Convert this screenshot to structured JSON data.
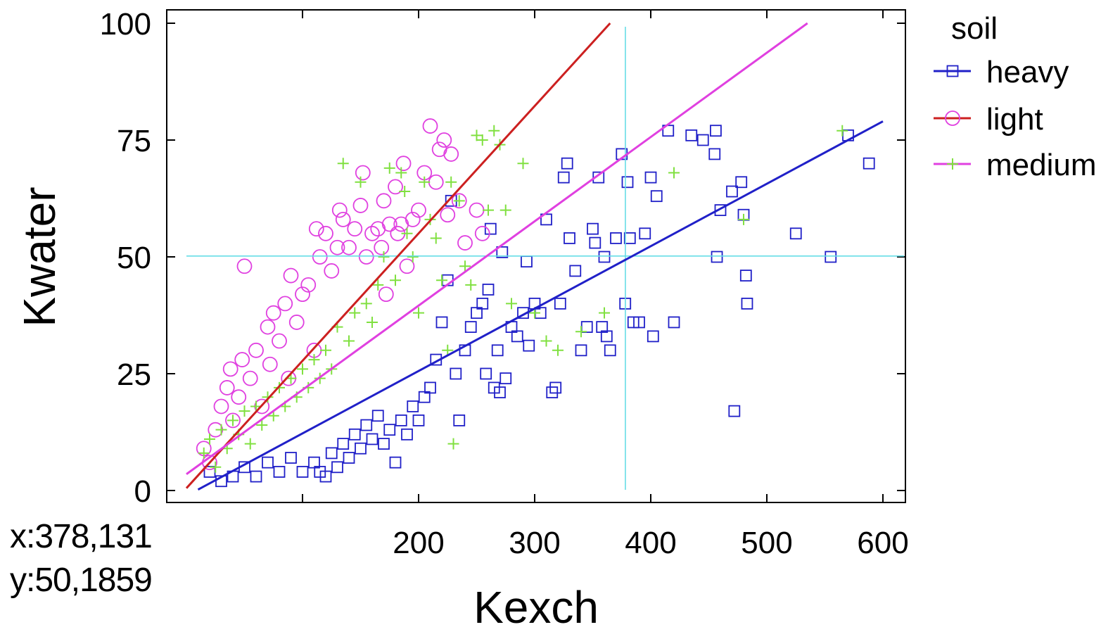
{
  "readout": {
    "x": "x:378,131",
    "y": "y:50,1859"
  },
  "chart_data": {
    "type": "scatter",
    "xlabel": "Kexch",
    "ylabel": "Kwater",
    "xlim": [
      0,
      600
    ],
    "ylim": [
      0,
      100
    ],
    "x_ticks": [
      200,
      300,
      400,
      500,
      600
    ],
    "x_minor_ticks": [
      100
    ],
    "y_ticks": [
      0,
      25,
      50,
      75,
      100
    ],
    "grid": false,
    "crosshair": {
      "x": 378.131,
      "y": 50.1859,
      "color": "#66dde6"
    },
    "legend": {
      "title": "soil",
      "position": "right"
    },
    "series": [
      {
        "name": "heavy",
        "marker": "square",
        "color": "#2020c8",
        "fit": {
          "x": [
            10,
            600
          ],
          "y": [
            0.2,
            79
          ]
        },
        "points": [
          [
            20,
            4
          ],
          [
            30,
            2
          ],
          [
            40,
            3
          ],
          [
            50,
            5
          ],
          [
            60,
            3
          ],
          [
            70,
            6
          ],
          [
            80,
            4
          ],
          [
            90,
            7
          ],
          [
            100,
            4
          ],
          [
            110,
            6
          ],
          [
            115,
            4
          ],
          [
            120,
            3
          ],
          [
            125,
            8
          ],
          [
            130,
            5
          ],
          [
            135,
            10
          ],
          [
            140,
            7
          ],
          [
            145,
            12
          ],
          [
            150,
            9
          ],
          [
            155,
            14
          ],
          [
            160,
            11
          ],
          [
            165,
            16
          ],
          [
            170,
            10
          ],
          [
            175,
            13
          ],
          [
            180,
            6
          ],
          [
            185,
            15
          ],
          [
            190,
            12
          ],
          [
            195,
            18
          ],
          [
            200,
            15
          ],
          [
            205,
            20
          ],
          [
            210,
            22
          ],
          [
            215,
            28
          ],
          [
            220,
            36
          ],
          [
            225,
            45
          ],
          [
            228,
            62
          ],
          [
            232,
            25
          ],
          [
            235,
            15
          ],
          [
            240,
            30
          ],
          [
            245,
            35
          ],
          [
            250,
            38
          ],
          [
            255,
            40
          ],
          [
            258,
            25
          ],
          [
            260,
            43
          ],
          [
            262,
            56
          ],
          [
            265,
            22
          ],
          [
            268,
            30
          ],
          [
            270,
            21
          ],
          [
            272,
            51
          ],
          [
            275,
            24
          ],
          [
            280,
            35
          ],
          [
            285,
            33
          ],
          [
            290,
            38
          ],
          [
            293,
            49
          ],
          [
            295,
            31
          ],
          [
            300,
            40
          ],
          [
            305,
            38
          ],
          [
            310,
            58
          ],
          [
            315,
            21
          ],
          [
            318,
            22
          ],
          [
            322,
            40
          ],
          [
            325,
            67
          ],
          [
            328,
            70
          ],
          [
            330,
            54
          ],
          [
            335,
            47
          ],
          [
            340,
            30
          ],
          [
            345,
            35
          ],
          [
            350,
            56
          ],
          [
            352,
            53
          ],
          [
            355,
            67
          ],
          [
            358,
            35
          ],
          [
            360,
            50
          ],
          [
            362,
            33
          ],
          [
            365,
            30
          ],
          [
            370,
            54
          ],
          [
            375,
            72
          ],
          [
            378,
            40
          ],
          [
            380,
            66
          ],
          [
            382,
            54
          ],
          [
            385,
            36
          ],
          [
            390,
            36
          ],
          [
            395,
            55
          ],
          [
            400,
            67
          ],
          [
            402,
            33
          ],
          [
            405,
            63
          ],
          [
            415,
            77
          ],
          [
            420,
            36
          ],
          [
            435,
            76
          ],
          [
            445,
            75
          ],
          [
            455,
            72
          ],
          [
            456,
            77
          ],
          [
            457,
            50
          ],
          [
            460,
            60
          ],
          [
            470,
            64
          ],
          [
            472,
            17
          ],
          [
            478,
            66
          ],
          [
            480,
            59
          ],
          [
            482,
            46
          ],
          [
            483,
            40
          ],
          [
            525,
            55
          ],
          [
            555,
            50
          ],
          [
            570,
            76
          ],
          [
            588,
            70
          ]
        ]
      },
      {
        "name": "light",
        "marker": "circle",
        "color": "#e040e0",
        "fit": {
          "x": [
            0,
            365
          ],
          "y": [
            0.5,
            100
          ]
        },
        "points": [
          [
            15,
            9
          ],
          [
            20,
            6
          ],
          [
            25,
            13
          ],
          [
            30,
            18
          ],
          [
            35,
            22
          ],
          [
            38,
            26
          ],
          [
            40,
            15
          ],
          [
            45,
            20
          ],
          [
            48,
            28
          ],
          [
            50,
            48
          ],
          [
            55,
            24
          ],
          [
            60,
            30
          ],
          [
            65,
            18
          ],
          [
            70,
            35
          ],
          [
            72,
            27
          ],
          [
            75,
            38
          ],
          [
            80,
            32
          ],
          [
            85,
            40
          ],
          [
            88,
            24
          ],
          [
            90,
            46
          ],
          [
            95,
            36
          ],
          [
            100,
            42
          ],
          [
            105,
            44
          ],
          [
            110,
            30
          ],
          [
            112,
            56
          ],
          [
            115,
            50
          ],
          [
            120,
            55
          ],
          [
            125,
            47
          ],
          [
            130,
            52
          ],
          [
            132,
            60
          ],
          [
            135,
            58
          ],
          [
            140,
            52
          ],
          [
            145,
            56
          ],
          [
            150,
            61
          ],
          [
            152,
            68
          ],
          [
            155,
            50
          ],
          [
            160,
            55
          ],
          [
            165,
            56
          ],
          [
            168,
            52
          ],
          [
            170,
            62
          ],
          [
            172,
            42
          ],
          [
            175,
            57
          ],
          [
            180,
            65
          ],
          [
            182,
            55
          ],
          [
            185,
            57
          ],
          [
            187,
            70
          ],
          [
            190,
            48
          ],
          [
            195,
            58
          ],
          [
            200,
            60
          ],
          [
            205,
            68
          ],
          [
            210,
            78
          ],
          [
            215,
            66
          ],
          [
            218,
            73
          ],
          [
            222,
            75
          ],
          [
            225,
            59
          ],
          [
            228,
            72
          ],
          [
            235,
            62
          ],
          [
            240,
            53
          ],
          [
            250,
            60
          ],
          [
            255,
            55
          ]
        ]
      },
      {
        "name": "medium",
        "marker": "plus",
        "color": "#80e040",
        "fit": {
          "x": [
            0,
            535
          ],
          "y": [
            3.5,
            100
          ]
        },
        "points": [
          [
            15,
            8
          ],
          [
            20,
            11
          ],
          [
            25,
            5
          ],
          [
            30,
            13
          ],
          [
            35,
            9
          ],
          [
            40,
            15
          ],
          [
            45,
            12
          ],
          [
            50,
            17
          ],
          [
            55,
            10
          ],
          [
            60,
            18
          ],
          [
            65,
            14
          ],
          [
            70,
            20
          ],
          [
            75,
            16
          ],
          [
            80,
            22
          ],
          [
            85,
            18
          ],
          [
            90,
            24
          ],
          [
            95,
            20
          ],
          [
            100,
            26
          ],
          [
            105,
            22
          ],
          [
            110,
            28
          ],
          [
            115,
            24
          ],
          [
            120,
            30
          ],
          [
            125,
            26
          ],
          [
            130,
            35
          ],
          [
            135,
            70
          ],
          [
            140,
            32
          ],
          [
            145,
            38
          ],
          [
            150,
            66
          ],
          [
            155,
            40
          ],
          [
            160,
            36
          ],
          [
            165,
            44
          ],
          [
            170,
            50
          ],
          [
            175,
            69
          ],
          [
            180,
            45
          ],
          [
            185,
            68
          ],
          [
            188,
            64
          ],
          [
            190,
            55
          ],
          [
            195,
            50
          ],
          [
            200,
            38
          ],
          [
            205,
            66
          ],
          [
            210,
            58
          ],
          [
            215,
            54
          ],
          [
            220,
            45
          ],
          [
            225,
            30
          ],
          [
            228,
            66
          ],
          [
            230,
            10
          ],
          [
            235,
            62
          ],
          [
            240,
            48
          ],
          [
            245,
            44
          ],
          [
            250,
            76
          ],
          [
            255,
            75
          ],
          [
            260,
            60
          ],
          [
            265,
            77
          ],
          [
            270,
            74
          ],
          [
            275,
            60
          ],
          [
            280,
            40
          ],
          [
            290,
            70
          ],
          [
            300,
            38
          ],
          [
            310,
            32
          ],
          [
            320,
            30
          ],
          [
            340,
            34
          ],
          [
            360,
            38
          ],
          [
            420,
            68
          ],
          [
            480,
            58
          ],
          [
            565,
            77
          ]
        ]
      }
    ]
  }
}
